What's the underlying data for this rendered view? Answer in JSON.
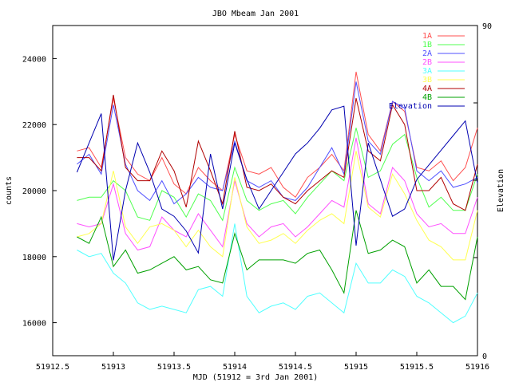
{
  "chart_data": {
    "type": "line",
    "title": "JBO Mbeam Jan 2001",
    "xlabel": "MJD (51912 = 3rd Jan 2001)",
    "ylabel": "counts",
    "y2label": "Elevation",
    "xlim": [
      51912.5,
      51916
    ],
    "ylim": [
      15000,
      25000
    ],
    "y2lim": [
      0,
      90
    ],
    "grid": false,
    "legend": "top-right",
    "xticks": [
      "51912.5",
      "51913",
      "51913.5",
      "51914",
      "51914.5",
      "51915",
      "51915.5",
      "51916"
    ],
    "yticks": [
      "16000",
      "18000",
      "20000",
      "22000",
      "24000"
    ],
    "y2ticks": [
      "0",
      "90"
    ],
    "x": [
      51912.7,
      51912.8,
      51912.9,
      51913.0,
      51913.1,
      51913.2,
      51913.3,
      51913.4,
      51913.5,
      51913.6,
      51913.7,
      51913.8,
      51913.9,
      51914.0,
      51914.1,
      51914.2,
      51914.3,
      51914.4,
      51914.5,
      51914.6,
      51914.7,
      51914.8,
      51914.9,
      51915.0,
      51915.1,
      51915.2,
      51915.3,
      51915.4,
      51915.5,
      51915.6,
      51915.7,
      51915.8,
      51915.9,
      51916.0
    ],
    "series": [
      {
        "name": "1A",
        "color": "#ff5050",
        "axis": "y",
        "values": [
          21200,
          21300,
          20700,
          22800,
          21000,
          20500,
          20300,
          21000,
          20200,
          19900,
          20700,
          20300,
          20000,
          21700,
          20600,
          20500,
          20700,
          20100,
          19800,
          20400,
          20700,
          21100,
          20600,
          23600,
          21700,
          21200,
          22700,
          22400,
          20700,
          20600,
          20900,
          20300,
          20700,
          21900
        ]
      },
      {
        "name": "1B",
        "color": "#50ff50",
        "axis": "y",
        "values": [
          19700,
          19800,
          19800,
          20300,
          20000,
          19200,
          19100,
          20000,
          19800,
          19200,
          19900,
          19700,
          19100,
          20700,
          19700,
          19400,
          19600,
          19700,
          19300,
          19800,
          20200,
          20600,
          20300,
          21900,
          20400,
          20600,
          21400,
          21700,
          20400,
          19500,
          19800,
          19400,
          19400,
          20500
        ]
      },
      {
        "name": "2A",
        "color": "#5050ff",
        "axis": "y",
        "values": [
          20800,
          21100,
          20500,
          22600,
          20800,
          20000,
          19700,
          20300,
          19600,
          19900,
          20400,
          20100,
          20000,
          21500,
          20300,
          20100,
          20300,
          19800,
          19700,
          20100,
          20700,
          21300,
          20500,
          23300,
          21500,
          21100,
          22700,
          22500,
          20600,
          20300,
          20600,
          20100,
          20200,
          20400
        ]
      },
      {
        "name": "2B",
        "color": "#ff50ff",
        "axis": "y",
        "values": [
          19000,
          18900,
          19000,
          20200,
          18700,
          18200,
          18300,
          19200,
          18800,
          18600,
          19300,
          18800,
          18300,
          20300,
          19000,
          18600,
          18900,
          19000,
          18600,
          18900,
          19300,
          19700,
          19500,
          21600,
          19600,
          19300,
          20700,
          20300,
          19300,
          18900,
          19000,
          18700,
          18700,
          19800
        ]
      },
      {
        "name": "3A",
        "color": "#50ffff",
        "axis": "y",
        "values": [
          18200,
          18000,
          18100,
          17500,
          17200,
          16600,
          16400,
          16500,
          16400,
          16300,
          17000,
          17100,
          16800,
          19000,
          16800,
          16300,
          16500,
          16600,
          16400,
          16800,
          16900,
          16600,
          16300,
          17800,
          17200,
          17200,
          17600,
          17400,
          16800,
          16600,
          16300,
          16000,
          16200,
          16900
        ]
      },
      {
        "name": "3B",
        "color": "#ffff50",
        "axis": "y",
        "values": [
          18600,
          18700,
          19000,
          20600,
          18900,
          18400,
          18900,
          19000,
          18800,
          18300,
          18800,
          18300,
          18000,
          20400,
          18900,
          18400,
          18500,
          18700,
          18400,
          18800,
          19100,
          19300,
          19000,
          21200,
          19500,
          19200,
          20500,
          19900,
          19100,
          18500,
          18300,
          17900,
          17900,
          19400
        ]
      },
      {
        "name": "4A",
        "color": "#b00000",
        "axis": "y",
        "values": [
          21000,
          21000,
          20600,
          22900,
          20700,
          20300,
          20300,
          21200,
          20600,
          19500,
          21500,
          20600,
          19600,
          21800,
          20100,
          20000,
          20200,
          19800,
          19600,
          20000,
          20300,
          20600,
          20400,
          22800,
          21200,
          20900,
          22600,
          22000,
          20000,
          20000,
          20400,
          19600,
          19400,
          20800
        ]
      },
      {
        "name": "4B",
        "color": "#00a000",
        "axis": "y",
        "values": [
          18600,
          18400,
          19200,
          17700,
          18200,
          17500,
          17600,
          17800,
          18000,
          17600,
          17700,
          17300,
          17200,
          18700,
          17600,
          17900,
          17900,
          17900,
          17800,
          18100,
          18200,
          17600,
          16900,
          19400,
          18100,
          18200,
          18500,
          18300,
          17200,
          17600,
          17100,
          17100,
          16700,
          18600
        ]
      },
      {
        "name": "Elevation",
        "color": "#0000b0",
        "axis": "y2",
        "values": [
          50,
          58,
          66,
          26,
          45,
          58,
          50,
          40,
          38,
          34,
          28,
          55,
          40,
          58,
          48,
          40,
          45,
          50,
          55,
          58,
          62,
          67,
          68,
          30,
          58,
          48,
          38,
          40,
          48,
          52,
          56,
          60,
          64,
          47
        ]
      }
    ]
  }
}
